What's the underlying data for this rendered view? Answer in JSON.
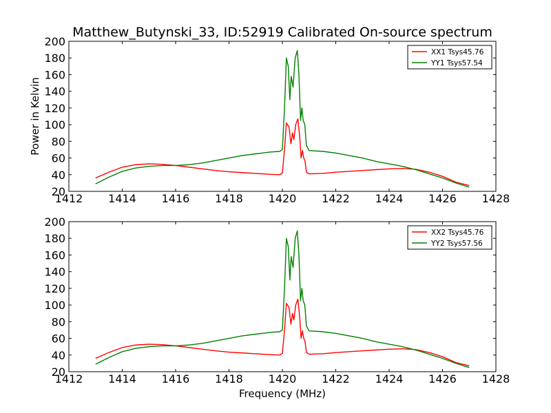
{
  "title": "Matthew_Butynski_33, ID:52919 Calibrated On-source spectrum",
  "chart_data": [
    {
      "type": "line",
      "xlabel": "",
      "ylabel": "Power in Kelvin",
      "xlim": [
        1412,
        1428
      ],
      "ylim": [
        20,
        200
      ],
      "xticks": [
        1412,
        1414,
        1416,
        1418,
        1420,
        1422,
        1424,
        1426,
        1428
      ],
      "yticks": [
        20,
        40,
        60,
        80,
        100,
        120,
        140,
        160,
        180,
        200
      ],
      "legend_position": "top-right",
      "series": [
        {
          "name": "XX1 Tsys45.76",
          "color": "#ff0000",
          "points": [
            [
              1413.0,
              36
            ],
            [
              1413.5,
              43
            ],
            [
              1414.0,
              49
            ],
            [
              1414.5,
              52
            ],
            [
              1415.0,
              53
            ],
            [
              1415.5,
              52.5
            ],
            [
              1416.0,
              51
            ],
            [
              1416.5,
              49
            ],
            [
              1417.0,
              47
            ],
            [
              1417.5,
              45
            ],
            [
              1418.0,
              43.5
            ],
            [
              1418.5,
              42.5
            ],
            [
              1419.0,
              41.5
            ],
            [
              1419.5,
              40.5
            ],
            [
              1419.9,
              40
            ],
            [
              1420.0,
              42
            ],
            [
              1420.08,
              70
            ],
            [
              1420.15,
              102
            ],
            [
              1420.25,
              97
            ],
            [
              1420.32,
              77
            ],
            [
              1420.38,
              90
            ],
            [
              1420.43,
              82
            ],
            [
              1420.5,
              100
            ],
            [
              1420.58,
              107
            ],
            [
              1420.65,
              85
            ],
            [
              1420.7,
              60
            ],
            [
              1420.75,
              69
            ],
            [
              1420.8,
              60
            ],
            [
              1420.85,
              56
            ],
            [
              1420.9,
              43
            ],
            [
              1421.0,
              41
            ],
            [
              1421.5,
              41.5
            ],
            [
              1422.0,
              43
            ],
            [
              1422.5,
              44
            ],
            [
              1423.0,
              45
            ],
            [
              1423.5,
              46
            ],
            [
              1424.0,
              47
            ],
            [
              1424.5,
              47.5
            ],
            [
              1425.0,
              46.5
            ],
            [
              1425.5,
              43
            ],
            [
              1426.0,
              38
            ],
            [
              1426.5,
              31
            ],
            [
              1427.0,
              27
            ]
          ]
        },
        {
          "name": "YY1 Tsys57.54",
          "color": "#008000",
          "points": [
            [
              1413.0,
              29
            ],
            [
              1413.5,
              37
            ],
            [
              1414.0,
              44
            ],
            [
              1414.5,
              48
            ],
            [
              1415.0,
              50
            ],
            [
              1415.5,
              51
            ],
            [
              1416.0,
              51
            ],
            [
              1416.5,
              52
            ],
            [
              1417.0,
              54
            ],
            [
              1417.5,
              57
            ],
            [
              1418.0,
              60
            ],
            [
              1418.5,
              63
            ],
            [
              1419.0,
              65
            ],
            [
              1419.5,
              67
            ],
            [
              1419.9,
              68
            ],
            [
              1420.0,
              70
            ],
            [
              1420.08,
              120
            ],
            [
              1420.15,
              180
            ],
            [
              1420.22,
              170
            ],
            [
              1420.28,
              130
            ],
            [
              1420.33,
              158
            ],
            [
              1420.4,
              145
            ],
            [
              1420.48,
              180
            ],
            [
              1420.56,
              189
            ],
            [
              1420.62,
              160
            ],
            [
              1420.68,
              105
            ],
            [
              1420.73,
              120
            ],
            [
              1420.78,
              105
            ],
            [
              1420.84,
              100
            ],
            [
              1420.9,
              75
            ],
            [
              1421.0,
              69
            ],
            [
              1421.5,
              68
            ],
            [
              1422.0,
              66
            ],
            [
              1422.5,
              63
            ],
            [
              1423.0,
              60
            ],
            [
              1423.5,
              56
            ],
            [
              1424.0,
              53
            ],
            [
              1424.5,
              50
            ],
            [
              1425.0,
              46
            ],
            [
              1425.5,
              41
            ],
            [
              1426.0,
              36
            ],
            [
              1426.5,
              30
            ],
            [
              1427.0,
              25
            ]
          ]
        }
      ]
    },
    {
      "type": "line",
      "xlabel": "Frequency (MHz)",
      "ylabel": "",
      "xlim": [
        1412,
        1428
      ],
      "ylim": [
        20,
        200
      ],
      "xticks": [
        1412,
        1414,
        1416,
        1418,
        1420,
        1422,
        1424,
        1426,
        1428
      ],
      "yticks": [
        20,
        40,
        60,
        80,
        100,
        120,
        140,
        160,
        180,
        200
      ],
      "legend_position": "top-right",
      "series": [
        {
          "name": "XX2 Tsys45.76",
          "color": "#ff0000",
          "points": [
            [
              1413.0,
              36
            ],
            [
              1413.5,
              43
            ],
            [
              1414.0,
              49
            ],
            [
              1414.5,
              52
            ],
            [
              1415.0,
              53
            ],
            [
              1415.5,
              52.5
            ],
            [
              1416.0,
              51
            ],
            [
              1416.5,
              49
            ],
            [
              1417.0,
              47
            ],
            [
              1417.5,
              45
            ],
            [
              1418.0,
              43.5
            ],
            [
              1418.5,
              42.5
            ],
            [
              1419.0,
              41.5
            ],
            [
              1419.5,
              40.5
            ],
            [
              1419.9,
              40
            ],
            [
              1420.0,
              42
            ],
            [
              1420.08,
              70
            ],
            [
              1420.15,
              102
            ],
            [
              1420.25,
              97
            ],
            [
              1420.32,
              77
            ],
            [
              1420.38,
              90
            ],
            [
              1420.43,
              82
            ],
            [
              1420.5,
              100
            ],
            [
              1420.58,
              107
            ],
            [
              1420.65,
              85
            ],
            [
              1420.7,
              60
            ],
            [
              1420.75,
              69
            ],
            [
              1420.8,
              60
            ],
            [
              1420.85,
              56
            ],
            [
              1420.9,
              43
            ],
            [
              1421.0,
              41
            ],
            [
              1421.5,
              41.5
            ],
            [
              1422.0,
              43
            ],
            [
              1422.5,
              44
            ],
            [
              1423.0,
              45
            ],
            [
              1423.5,
              46
            ],
            [
              1424.0,
              47
            ],
            [
              1424.5,
              47.5
            ],
            [
              1425.0,
              46.5
            ],
            [
              1425.5,
              43
            ],
            [
              1426.0,
              38
            ],
            [
              1426.5,
              31
            ],
            [
              1427.0,
              27
            ]
          ]
        },
        {
          "name": "YY2 Tsys57.56",
          "color": "#008000",
          "points": [
            [
              1413.0,
              29
            ],
            [
              1413.5,
              37
            ],
            [
              1414.0,
              44
            ],
            [
              1414.5,
              48
            ],
            [
              1415.0,
              50
            ],
            [
              1415.5,
              51
            ],
            [
              1416.0,
              51
            ],
            [
              1416.5,
              52
            ],
            [
              1417.0,
              54
            ],
            [
              1417.5,
              57
            ],
            [
              1418.0,
              60
            ],
            [
              1418.5,
              63
            ],
            [
              1419.0,
              65
            ],
            [
              1419.5,
              67
            ],
            [
              1419.9,
              68
            ],
            [
              1420.0,
              70
            ],
            [
              1420.08,
              120
            ],
            [
              1420.15,
              180
            ],
            [
              1420.22,
              170
            ],
            [
              1420.28,
              130
            ],
            [
              1420.33,
              158
            ],
            [
              1420.4,
              145
            ],
            [
              1420.48,
              180
            ],
            [
              1420.56,
              189
            ],
            [
              1420.62,
              160
            ],
            [
              1420.68,
              105
            ],
            [
              1420.73,
              120
            ],
            [
              1420.78,
              105
            ],
            [
              1420.84,
              100
            ],
            [
              1420.9,
              75
            ],
            [
              1421.0,
              69
            ],
            [
              1421.5,
              68
            ],
            [
              1422.0,
              66
            ],
            [
              1422.5,
              63
            ],
            [
              1423.0,
              60
            ],
            [
              1423.5,
              56
            ],
            [
              1424.0,
              53
            ],
            [
              1424.5,
              50
            ],
            [
              1425.0,
              46
            ],
            [
              1425.5,
              41
            ],
            [
              1426.0,
              36
            ],
            [
              1426.5,
              30
            ],
            [
              1427.0,
              25
            ]
          ]
        }
      ]
    }
  ]
}
